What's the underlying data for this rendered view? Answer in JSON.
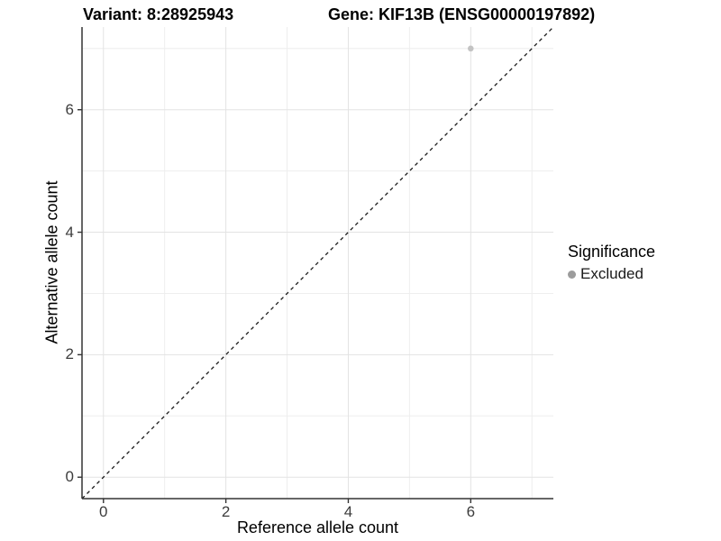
{
  "header": {
    "variant_title": "Variant: 8:28925943",
    "gene_title": "Gene: KIF13B (ENSG00000197892)"
  },
  "chart_data": {
    "type": "scatter",
    "xlabel": "Reference allele count",
    "ylabel": "Alternative allele count",
    "xlim": [
      -0.35,
      7.35
    ],
    "ylim": [
      -0.35,
      7.35
    ],
    "x_ticks": [
      0,
      2,
      4,
      6
    ],
    "y_ticks": [
      0,
      2,
      4,
      6
    ],
    "x_minor_ticks": [
      1,
      3,
      5,
      7
    ],
    "y_minor_ticks": [
      1,
      3,
      5,
      7
    ],
    "grid": "on",
    "identity_line": {
      "type": "abline",
      "slope": 1,
      "intercept": 0,
      "style": "dashed"
    },
    "series": [
      {
        "name": "Excluded",
        "color": "#c3c3c3",
        "points": [
          {
            "x": 6,
            "y": 7
          }
        ]
      }
    ],
    "legend": {
      "title": "Significance",
      "position": "right",
      "entries": [
        {
          "label": "Excluded",
          "color": "#9c9c9c"
        }
      ]
    },
    "colors": {
      "background": "#ffffff",
      "grid_major": "#e3e3e3",
      "grid_minor": "#eeeeee",
      "axis_line": "#333333",
      "identity_line": "#1a1a1a"
    }
  }
}
